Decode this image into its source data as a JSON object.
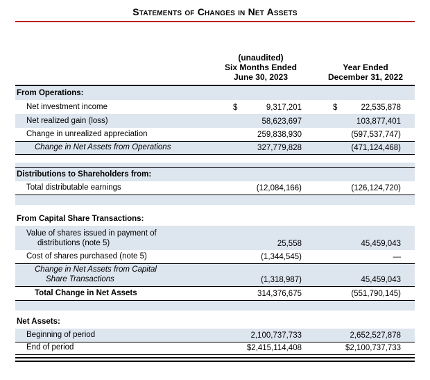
{
  "page": {
    "title": "Statements of Changes in Net Assets",
    "colors": {
      "rule_red": "#c00000",
      "row_shade": "#dde5ef"
    }
  },
  "table": {
    "header": {
      "unaudited": "(unaudited)",
      "col1_line1": "Six Months Ended",
      "col1_line2": "June 30, 2023",
      "col2_line1": "Year Ended",
      "col2_line2": "December 31, 2022"
    },
    "rows": [
      {
        "type": "section",
        "shaded": true,
        "indent": 0,
        "label": "From Operations:"
      },
      {
        "type": "item",
        "shaded": false,
        "indent": 1,
        "label": "Net investment income",
        "d1": true,
        "d2": true,
        "v1": "9,317,201",
        "v2": "22,535,878"
      },
      {
        "type": "item",
        "shaded": true,
        "indent": 1,
        "label": "Net realized gain (loss)",
        "v1": "58,623,697",
        "v2": "103,877,401"
      },
      {
        "type": "item",
        "shaded": false,
        "indent": 1,
        "label": "Change in unrealized appreciation",
        "v1": "259,838,930",
        "v2": "(597,537,747)",
        "borderBottom": "single"
      },
      {
        "type": "subtotal",
        "shaded": true,
        "indent": 2,
        "label": "Change in Net Assets from Operations",
        "v1": "327,779,828",
        "v2": "(471,124,468)",
        "borderBottom": "single",
        "height": 19
      },
      {
        "type": "spacer",
        "shaded": false,
        "height": 11
      },
      {
        "type": "spacer",
        "shaded": true,
        "height": 7
      },
      {
        "type": "section",
        "shaded": true,
        "indent": 0,
        "label": "Distributions to Shareholders from:",
        "borderTop": true
      },
      {
        "type": "item",
        "shaded": false,
        "indent": 1,
        "label": "Total distributable earnings",
        "v1": "(12,084,166)",
        "v2": "(126,124,720)",
        "borderBottom": "single"
      },
      {
        "type": "spacer",
        "shaded": true,
        "height": 14
      },
      {
        "type": "spacer",
        "shaded": false,
        "height": 12
      },
      {
        "type": "section",
        "shaded": false,
        "indent": 0,
        "label": "From Capital Share Transactions:",
        "height": 18
      },
      {
        "type": "item",
        "shaded": true,
        "indent": 1,
        "label": "Value of shares issued in payment of",
        "label2": "distributions (note 5)",
        "v1": "25,558",
        "v2": "45,459,043",
        "height": 35
      },
      {
        "type": "item",
        "shaded": false,
        "indent": 1,
        "label": "Cost of shares purchased (note 5)",
        "v1": "(1,344,545)",
        "v2": "—",
        "borderBottom": "single"
      },
      {
        "type": "subtotal",
        "shaded": true,
        "indent": 2,
        "label": "Change in Net Assets from Capital",
        "label2": "Share Transactions",
        "v1": "(1,318,987)",
        "v2": "45,459,043",
        "borderBottom": "single",
        "height": 33
      },
      {
        "type": "total",
        "shaded": false,
        "indent": 2,
        "label": "Total Change in Net Assets",
        "v1": "314,376,675",
        "v2": "(551,790,145)",
        "borderBottom": "single"
      },
      {
        "type": "spacer",
        "shaded": true,
        "height": 14
      },
      {
        "type": "spacer",
        "shaded": false,
        "height": 9
      },
      {
        "type": "section",
        "shaded": false,
        "indent": 0,
        "label": "Net Assets:",
        "height": 17
      },
      {
        "type": "item",
        "shaded": true,
        "indent": 1,
        "label": "Beginning of period",
        "v1": "2,100,737,733",
        "v2": "2,652,527,878",
        "borderBottom": "single"
      },
      {
        "type": "item",
        "shaded": false,
        "indent": 1,
        "label": "End of period",
        "v1": "$2,415,114,408",
        "v2": "$2,100,737,733",
        "borderBottom": "double",
        "height": 18
      }
    ]
  }
}
